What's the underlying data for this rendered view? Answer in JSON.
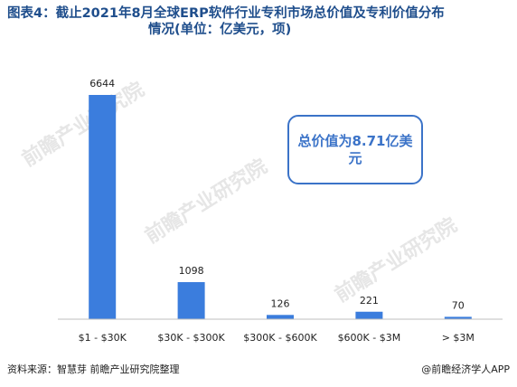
{
  "title_line1": "图表4：截止2021年8月全球ERP软件行业专利市场总价值及专利价值分布",
  "title_line2": "情况(单位：亿美元，项)",
  "callout_text": "总价值为8.71亿美元",
  "source": "资料来源：智慧芽 前瞻产业研究院整理",
  "brand": "@前瞻经济学人APP",
  "watermarks": [
    "前瞻产业研究院",
    "前瞻产业研究院",
    "前瞻产业研究院"
  ],
  "colors": {
    "bar": "#3b7ddd",
    "title": "#1f4e8c",
    "axis": "#bfbfbf"
  },
  "chart_data": {
    "type": "bar",
    "title": "截止2021年8月全球ERP软件行业专利市场总价值及专利价值分布情况(单位：亿美元，项)",
    "categories": [
      "$1 - $30K",
      "$30K - $300K",
      "$300K - $600K",
      "$600K - $3M",
      "> $3M"
    ],
    "values": [
      6644,
      1098,
      126,
      221,
      70
    ],
    "xlabel": "",
    "ylabel": "",
    "ylim": [
      0,
      6700
    ],
    "grid": false,
    "data_labels": true
  }
}
